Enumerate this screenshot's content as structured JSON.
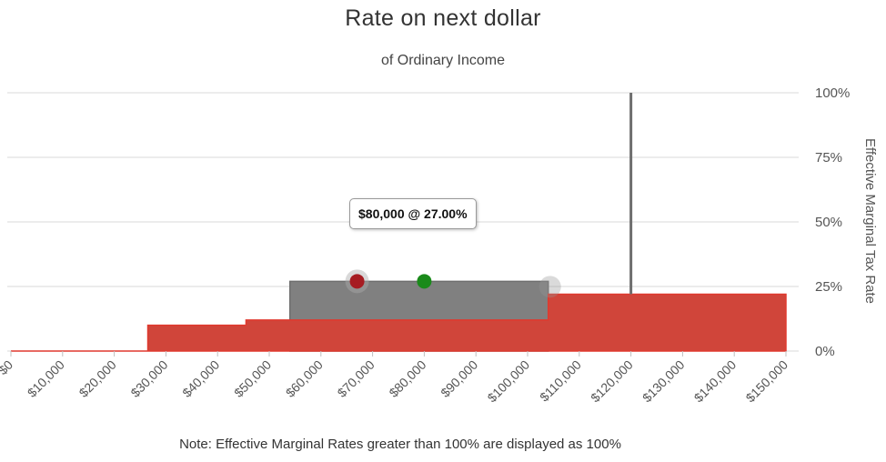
{
  "chart_data": {
    "type": "area",
    "title": "Rate on next dollar",
    "subtitle": "of Ordinary Income",
    "ylabel": "Effective Marginal Tax Rate",
    "xlim": [
      0,
      150000
    ],
    "ylim": [
      0,
      100
    ],
    "x_ticks": [
      0,
      10000,
      20000,
      30000,
      40000,
      50000,
      60000,
      70000,
      80000,
      90000,
      100000,
      110000,
      120000,
      130000,
      140000,
      150000
    ],
    "x_tick_labels": [
      "$0",
      "$10,000",
      "$20,000",
      "$30,000",
      "$40,000",
      "$50,000",
      "$60,000",
      "$70,000",
      "$80,000",
      "$90,000",
      "$100,000",
      "$110,000",
      "$120,000",
      "$130,000",
      "$140,000",
      "$150,000"
    ],
    "y_ticks": [
      0,
      25,
      50,
      75,
      100
    ],
    "y_tick_labels": [
      "0%",
      "25%",
      "50%",
      "75%",
      "100%"
    ],
    "grid": true,
    "series": [
      {
        "color": "#d0453a",
        "steps": [
          [
            0,
            0
          ],
          [
            26500,
            10
          ],
          [
            45500,
            12
          ],
          [
            104000,
            22
          ],
          [
            150000,
            22
          ]
        ]
      },
      {
        "color": "#808080",
        "steps": [
          [
            54000,
            27
          ],
          [
            104000,
            27
          ]
        ],
        "spike": {
          "x": 120000,
          "y": 100
        }
      }
    ],
    "markers": [
      {
        "x": 67000,
        "y": 27,
        "color": "#a61c22"
      },
      {
        "x": 80000,
        "y": 27,
        "color": "#1a8a1a"
      }
    ],
    "tooltip": "$80,000 @ 27.00%",
    "note": "Note: Effective Marginal Rates greater than 100% are displayed as 100%",
    "colors": {
      "red": "#d0453a",
      "gray": "#808080",
      "grid": "#d8d8d8"
    }
  }
}
